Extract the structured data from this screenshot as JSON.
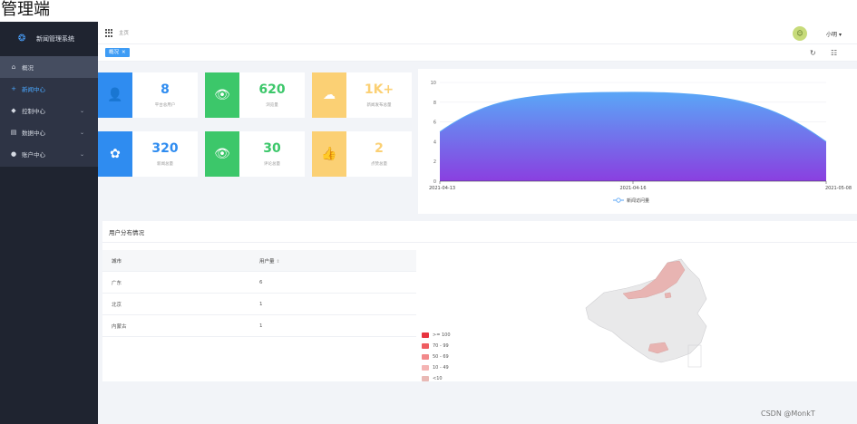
{
  "caption": "管理端",
  "sidebar": {
    "brand": "新闻管理系统",
    "items": [
      {
        "label": "概况",
        "icon": "home-icon",
        "glyph": "⌂",
        "chevron": false
      },
      {
        "label": "新闻中心",
        "icon": "plus-icon",
        "glyph": "+",
        "chevron": false
      },
      {
        "label": "控制中心",
        "icon": "control-icon",
        "glyph": "◆",
        "chevron": true
      },
      {
        "label": "数据中心",
        "icon": "data-icon",
        "glyph": "▤",
        "chevron": true
      },
      {
        "label": "账户中心",
        "icon": "account-icon",
        "glyph": "●",
        "chevron": true
      }
    ]
  },
  "topbar": {
    "breadcrumb": "主页",
    "username": "小明"
  },
  "tagbar": {
    "active_tag": "概况"
  },
  "stats": [
    {
      "value": "8",
      "label": "平台总用户",
      "icon": "user-add-icon",
      "glyph": "👤",
      "color": "#2f8cf0"
    },
    {
      "value": "620",
      "label": "浏览量",
      "icon": "eye-icon",
      "glyph": "👁",
      "color": "#3cc76a"
    },
    {
      "value": "1K+",
      "label": "新闻发布总量",
      "icon": "cloud-upload-icon",
      "glyph": "☁",
      "color": "#fbd074"
    },
    {
      "value": "320",
      "label": "新闻总量",
      "icon": "group-icon",
      "glyph": "✿",
      "color": "#2f8cf0"
    },
    {
      "value": "30",
      "label": "评论总量",
      "icon": "eye-icon",
      "glyph": "👁",
      "color": "#3cc76a"
    },
    {
      "value": "2",
      "label": "点赞总量",
      "icon": "thumbs-up-icon",
      "glyph": "👍",
      "color": "#fbd074"
    }
  ],
  "chart_data": {
    "type": "area",
    "x": [
      "2021-04-13",
      "2021-04-16",
      "2021-05-08"
    ],
    "y_ticks": [
      0,
      2,
      4,
      6,
      8,
      10
    ],
    "ylim": [
      0,
      10
    ],
    "series": [
      {
        "name": "新闻访问量",
        "values": [
          5,
          9,
          4
        ]
      }
    ],
    "legend_position": "bottom",
    "grid": true,
    "gradient": [
      "#5aa6f7",
      "#8a3fe0"
    ]
  },
  "distribution": {
    "title": "用户分布情况",
    "columns": [
      "城市",
      "用户量"
    ],
    "rows": [
      {
        "city": "广东",
        "count": "6"
      },
      {
        "city": "北京",
        "count": "1"
      },
      {
        "city": "内蒙古",
        "count": "1"
      }
    ],
    "map_legend": [
      {
        "label": ">= 100",
        "color": "#e8343f"
      },
      {
        "label": "70 - 99",
        "color": "#ef5d61"
      },
      {
        "label": "50 - 69",
        "color": "#f2898a"
      },
      {
        "label": "10 - 49",
        "color": "#f4b4b3"
      },
      {
        "label": "<10",
        "color": "#e9b9b5"
      }
    ]
  },
  "watermark": "CSDN @MonkT"
}
